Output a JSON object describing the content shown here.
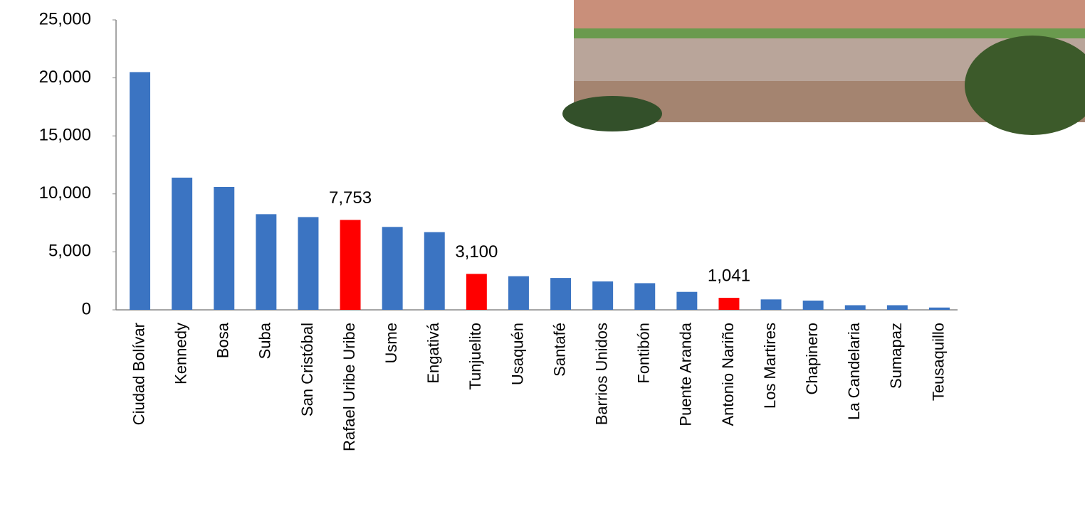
{
  "chart_data": {
    "type": "bar",
    "categories": [
      "Ciudad Bolívar",
      "Kennedy",
      "Bosa",
      "Suba",
      "San Cristóbal",
      "Rafael Uribe Uribe",
      "Usme",
      "Engativá",
      "Tunjuelito",
      "Usaquén",
      "Santafé",
      "Barrios Unidos",
      "Fontibón",
      "Puente Aranda",
      "Antonio Nariño",
      "Los Martires",
      "Chapinero",
      "La Candelaria",
      "Sumapaz",
      "Teusaquillo"
    ],
    "values": [
      20500,
      11400,
      10600,
      8250,
      8000,
      7753,
      7150,
      6700,
      3100,
      2900,
      2750,
      2450,
      2300,
      1550,
      1041,
      900,
      800,
      400,
      400,
      200
    ],
    "value_labels": [
      null,
      null,
      null,
      null,
      null,
      "7,753",
      null,
      null,
      "3,100",
      null,
      null,
      null,
      null,
      null,
      "1,041",
      null,
      null,
      null,
      null,
      null
    ],
    "colors": [
      "#3b74c2",
      "#3b74c2",
      "#3b74c2",
      "#3b74c2",
      "#3b74c2",
      "#ff0000",
      "#3b74c2",
      "#3b74c2",
      "#ff0000",
      "#3b74c2",
      "#3b74c2",
      "#3b74c2",
      "#3b74c2",
      "#3b74c2",
      "#ff0000",
      "#3b74c2",
      "#3b74c2",
      "#3b74c2",
      "#3b74c2",
      "#3b74c2"
    ],
    "ylim": [
      0,
      25000
    ],
    "yticks": [
      0,
      {
        "value": 5000,
        "label": "5,000"
      },
      {
        "value": 10000,
        "label": "10,000"
      },
      {
        "value": 15000,
        "label": "15,000"
      },
      {
        "value": 20000,
        "label": "20,000"
      },
      {
        "value": 25000,
        "label": "25,000"
      }
    ],
    "grid": false
  }
}
